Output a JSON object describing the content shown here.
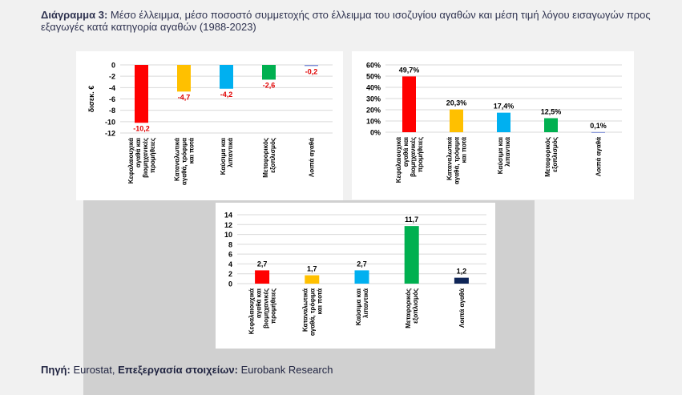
{
  "header": {
    "title_bold": "Διάγραμμα 3:",
    "title_text": "Μέσο έλλειμμα, μέσο ποσοστό συμμετοχής στο έλλειμμα του ισοζυγίου αγαθών και μέση τιμή λόγου εισαγωγών προς εξαγωγές κατά κατηγορία αγαθών (1988-2023)"
  },
  "footer": {
    "source_label": "Πηγή:",
    "source_value": "Eurostat,",
    "processing_label": "Επεξεργασία στοιχείων:",
    "processing_value": "Eurobank Research"
  },
  "colors": {
    "red": "#ff0000",
    "yellow": "#ffc000",
    "cyan": "#00b0f0",
    "green": "#00b050",
    "navy": "#0f2557",
    "blue": "#7c8cd6"
  },
  "chart_data": [
    {
      "type": "bar",
      "categories": [
        [
          "Κεφαλαιουχικά",
          "αγαθά και",
          "βιομηχανικές",
          "προμήθειες"
        ],
        [
          "Καταναλωτικά",
          "αγαθά, τρόφιμα",
          "και ποτά"
        ],
        [
          "Καύσιμα και",
          "λιπαντικά"
        ],
        [
          "Μεταφορικός",
          "εξοπλισμός"
        ],
        [
          "Λοιπά αγαθά"
        ]
      ],
      "values": [
        -10.2,
        -4.7,
        -4.2,
        -2.6,
        -0.2
      ],
      "labels": [
        "-10,2",
        "-4,7",
        "-4,2",
        "-2,6",
        "-0,2"
      ],
      "colors": [
        "red",
        "yellow",
        "cyan",
        "green",
        "blue"
      ],
      "ylabel": "δισεκ. €",
      "yticks": [
        "0",
        "-2",
        "-4",
        "-6",
        "-8",
        "-10",
        "-12"
      ],
      "ylim": [
        -12,
        0
      ],
      "grid": true
    },
    {
      "type": "bar",
      "categories": [
        [
          "Κεφαλαιουχικά",
          "αγαθά και",
          "βιομηχανικές",
          "προμήθειες"
        ],
        [
          "Καταναλωτικά",
          "αγαθά, τρόφιμα",
          "και ποτά"
        ],
        [
          "Καύσιμα και",
          "λιπαντικά"
        ],
        [
          "Μεταφορικός",
          "εξοπλισμός"
        ],
        [
          "Λοιπά αγαθά"
        ]
      ],
      "values": [
        49.7,
        20.3,
        17.4,
        12.5,
        0.1
      ],
      "labels": [
        "49,7%",
        "20,3%",
        "17,4%",
        "12,5%",
        "0,1%"
      ],
      "colors": [
        "red",
        "yellow",
        "cyan",
        "green",
        "blue"
      ],
      "yticks": [
        "0%",
        "10%",
        "20%",
        "30%",
        "40%",
        "50%",
        "60%"
      ],
      "ylim": [
        0,
        60
      ],
      "grid": true
    },
    {
      "type": "bar",
      "categories": [
        [
          "Κεφαλαιουχικά",
          "αγαθά και",
          "βιομηχανικές",
          "προμήθειες"
        ],
        [
          "Καταναλωτικά",
          "αγαθά, τρόφιμα",
          "και ποτά"
        ],
        [
          "Καύσιμα και",
          "λιπαντικά"
        ],
        [
          "Μεταφορικός",
          "εξοπλισμός"
        ],
        [
          "Λοιπά αγαθά"
        ]
      ],
      "values": [
        2.7,
        1.7,
        2.7,
        11.7,
        1.2
      ],
      "labels": [
        "2,7",
        "1,7",
        "2,7",
        "11,7",
        "1,2"
      ],
      "colors": [
        "red",
        "yellow",
        "cyan",
        "green",
        "navy"
      ],
      "yticks": [
        "0",
        "2",
        "4",
        "6",
        "8",
        "10",
        "12",
        "14"
      ],
      "ylim": [
        0,
        14
      ],
      "grid": true
    }
  ]
}
